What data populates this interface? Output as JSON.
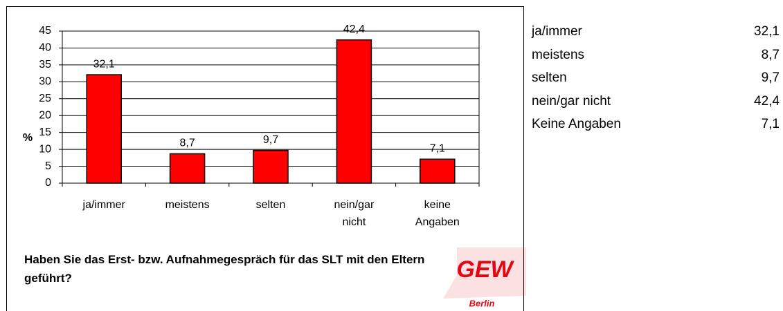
{
  "chart_data": {
    "type": "bar",
    "title": "Haben Sie das Erst- bzw. Aufnahmegespräch für das SLT mit den Eltern geführt?",
    "y_label": "%",
    "categories": [
      "ja/immer",
      "meistens",
      "selten",
      "nein/gar nicht",
      "keine Angaben"
    ],
    "values": [
      32.1,
      8.7,
      9.7,
      42.4,
      7.1
    ],
    "value_labels": [
      "32,1",
      "8,7",
      "9,7",
      "42,4",
      "7,1"
    ],
    "color": "#ff0000",
    "ylim": [
      0,
      45
    ],
    "yticks": [
      0,
      5,
      10,
      15,
      20,
      25,
      30,
      35,
      40,
      45
    ],
    "grid": true
  },
  "table": {
    "rows": [
      [
        "ja/immer",
        "32,1"
      ],
      [
        "meistens",
        "8,7"
      ],
      [
        "selten",
        "9,7"
      ],
      [
        "nein/gar nicht",
        "42,4"
      ],
      [
        "Keine Angaben",
        "7,1"
      ]
    ]
  },
  "logo": {
    "text": "GEW",
    "subtitle": "Berlin"
  }
}
